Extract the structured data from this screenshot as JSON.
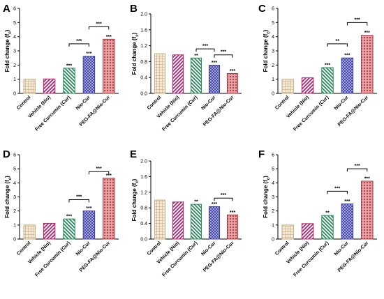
{
  "chart_data": [
    {
      "panel": "A",
      "type": "bar",
      "categories": [
        "Control",
        "Vehicle (Nio)",
        "Free Curcumin (Cur)",
        "Nio-Cur",
        "PEG-FA@Nio-Cur"
      ],
      "values": [
        1.0,
        1.02,
        1.78,
        2.62,
        3.82
      ],
      "bar_labels": [
        "",
        "",
        "***",
        "***",
        "***"
      ],
      "ylabel": "Fold change (f",
      "ylabel_sub": "c",
      "ylabel_end": ")",
      "ylim": [
        0,
        6
      ],
      "yticks": [
        "0",
        "1",
        "2",
        "3",
        "4",
        "5",
        "6"
      ],
      "ytick_values": [
        0,
        1,
        2,
        3,
        4,
        5,
        6
      ],
      "brackets": [
        {
          "from": 2,
          "to": 3,
          "y": 3.5,
          "label": "***"
        },
        {
          "from": 3,
          "to": 4,
          "y": 4.7,
          "label": "***"
        }
      ]
    },
    {
      "panel": "B",
      "type": "bar",
      "categories": [
        "Control",
        "Vehicle (Nio)",
        "Free Curcumin (Cur)",
        "Nio-Cur",
        "PEG-FA@Nio-Cur"
      ],
      "values": [
        1.0,
        0.97,
        0.89,
        0.71,
        0.5
      ],
      "bar_labels": [
        "",
        "",
        "**",
        "***",
        "***"
      ],
      "ylabel": "Fold change (f",
      "ylabel_sub": "c",
      "ylabel_end": ")",
      "ylim": [
        0,
        2.0
      ],
      "yticks": [
        "0.0",
        "0.4",
        "0.8",
        "1.2",
        "1.6",
        "2.0"
      ],
      "ytick_values": [
        0,
        0.4,
        0.8,
        1.2,
        1.6,
        2.0
      ],
      "brackets": [
        {
          "from": 2,
          "to": 3,
          "y": 1.12,
          "label": "***"
        },
        {
          "from": 3,
          "to": 4,
          "y": 0.97,
          "label": "***"
        }
      ]
    },
    {
      "panel": "C",
      "type": "bar",
      "categories": [
        "Control",
        "Vehicle (Nio)",
        "Free Curcumin (Cur)",
        "Nio-Cur",
        "PEG-FA@Nio-Cur"
      ],
      "values": [
        1.0,
        1.1,
        1.82,
        2.5,
        4.1
      ],
      "bar_labels": [
        "",
        "",
        "***",
        "***",
        "***"
      ],
      "ylabel": "Fold change (f",
      "ylabel_sub": "c",
      "ylabel_end": ")",
      "ylim": [
        0,
        6
      ],
      "yticks": [
        "0",
        "1",
        "2",
        "3",
        "4",
        "5",
        "6"
      ],
      "ytick_values": [
        0,
        1,
        2,
        3,
        4,
        5,
        6
      ],
      "brackets": [
        {
          "from": 2,
          "to": 3,
          "y": 3.5,
          "label": "**"
        },
        {
          "from": 3,
          "to": 4,
          "y": 5.0,
          "label": "***"
        }
      ]
    },
    {
      "panel": "D",
      "type": "bar",
      "categories": [
        "Control",
        "Vehicle (Nio)",
        "Free Curcumin (Cur)",
        "Nio-Cur",
        "PEG-FA@Nio-Cur"
      ],
      "values": [
        1.0,
        1.12,
        1.43,
        2.0,
        4.33
      ],
      "bar_labels": [
        "",
        "",
        "***",
        "***",
        "***"
      ],
      "ylabel": "Fold change (f",
      "ylabel_sub": "c",
      "ylabel_end": ")",
      "ylim": [
        0,
        6
      ],
      "yticks": [
        "0",
        "1",
        "2",
        "3",
        "4",
        "5",
        "6"
      ],
      "ytick_values": [
        0,
        1,
        2,
        3,
        4,
        5,
        6
      ],
      "brackets": [
        {
          "from": 2,
          "to": 3,
          "y": 2.8,
          "label": "***"
        },
        {
          "from": 3,
          "to": 4,
          "y": 4.8,
          "label": "***"
        }
      ]
    },
    {
      "panel": "E",
      "type": "bar",
      "categories": [
        "Control",
        "Vehicle (Nio)",
        "Free Curcumin (Cur)",
        "Nio-Cur",
        "PEG-FA@Nio-Cur"
      ],
      "values": [
        1.0,
        0.95,
        0.89,
        0.83,
        0.62
      ],
      "bar_labels": [
        "",
        "",
        "**",
        "***",
        "***"
      ],
      "ylabel": "Fold change (f",
      "ylabel_sub": "c",
      "ylabel_end": ")",
      "ylim": [
        0,
        2.0
      ],
      "yticks": [
        "0.0",
        "0.4",
        "0.8",
        "1.2",
        "1.6",
        "2.0"
      ],
      "ytick_values": [
        0,
        0.4,
        0.8,
        1.2,
        1.6,
        2.0
      ],
      "brackets": [
        {
          "from": 3,
          "to": 4,
          "y": 1.05,
          "label": "***"
        }
      ]
    },
    {
      "panel": "F",
      "type": "bar",
      "categories": [
        "Control",
        "Vehicle (Nio)",
        "Free Curcumin (Cur)",
        "Nio-Cur",
        "PEG-FA@Nio-Cur"
      ],
      "values": [
        1.0,
        1.1,
        1.68,
        2.5,
        4.12
      ],
      "bar_labels": [
        "",
        "",
        "**",
        "***",
        "***"
      ],
      "ylabel": "Fold change (f",
      "ylabel_sub": "c",
      "ylabel_end": ")",
      "ylim": [
        0,
        6
      ],
      "yticks": [
        "0",
        "1",
        "2",
        "3",
        "4",
        "5",
        "6"
      ],
      "ytick_values": [
        0,
        1,
        2,
        3,
        4,
        5,
        6
      ],
      "brackets": [
        {
          "from": 2,
          "to": 3,
          "y": 3.4,
          "label": "***"
        },
        {
          "from": 3,
          "to": 4,
          "y": 5.0,
          "label": "***"
        }
      ]
    }
  ],
  "colors": {
    "control": "#c8ad80",
    "vehicle": "#b3236e",
    "free_curcumin": "#2a8a5c",
    "nio_cur": "#3b3fa0",
    "peg_fa_nio_cur": "#b8373f"
  }
}
